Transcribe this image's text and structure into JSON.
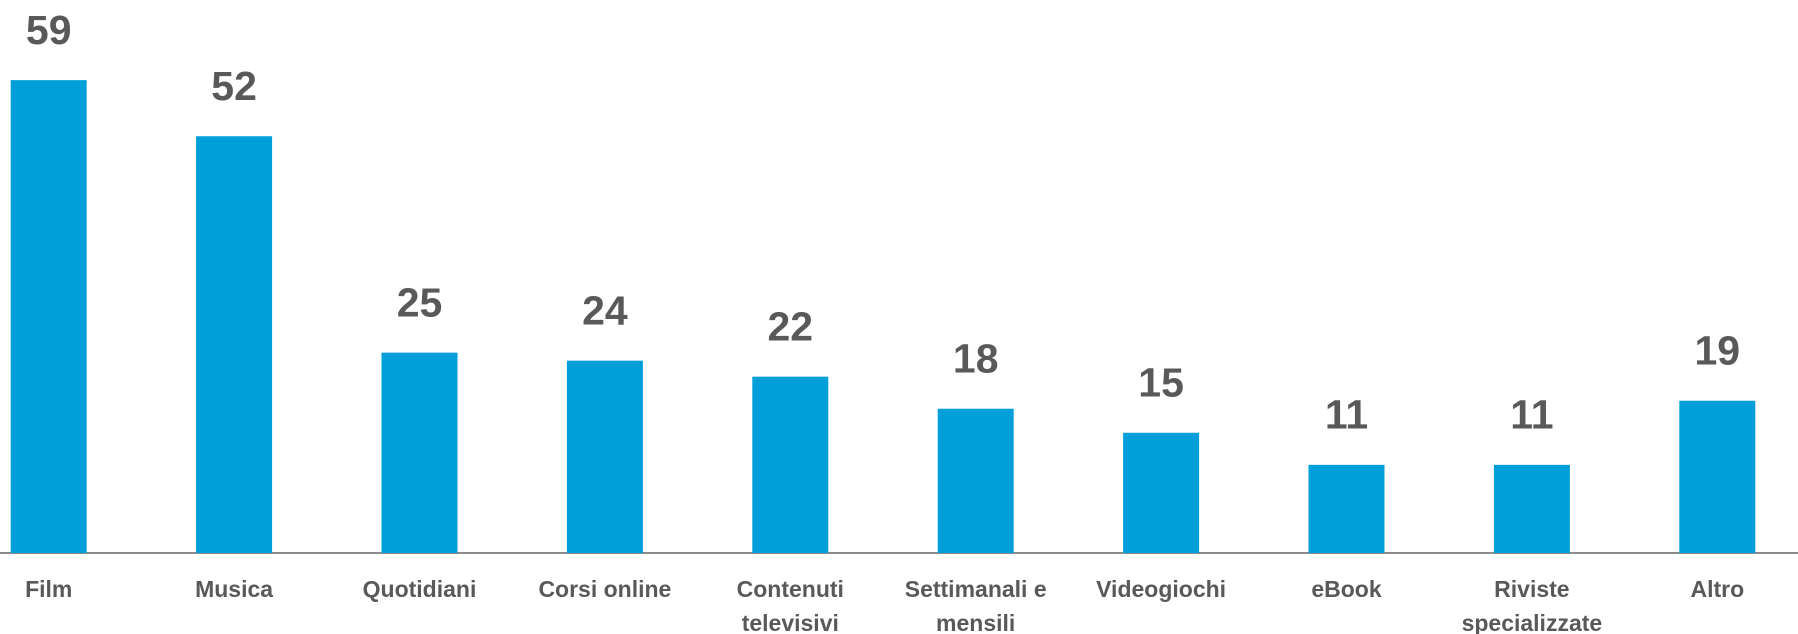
{
  "chart_data": {
    "type": "bar",
    "categories": [
      "Film",
      "Musica",
      "Quotidiani",
      "Corsi online",
      "Contenuti televisivi",
      "Settimanali e mensili",
      "Videogiochi",
      "eBook",
      "Riviste specializzate",
      "Altro"
    ],
    "values": [
      59,
      52,
      25,
      24,
      22,
      18,
      15,
      11,
      11,
      19
    ],
    "color": "#009fda",
    "ylim": [
      0,
      69
    ]
  }
}
